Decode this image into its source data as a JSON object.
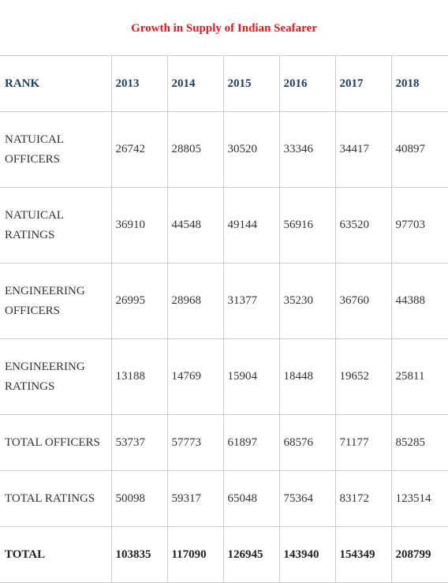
{
  "title": "Growth in Supply of Indian Seafarer",
  "table": {
    "header": [
      "RANK",
      "2013",
      "2014",
      "2015",
      "2016",
      "2017",
      "2018"
    ],
    "rows": [
      [
        "NATUICAL OFFICERS",
        26742,
        28805,
        30520,
        33346,
        34417,
        40897
      ],
      [
        "NATUICAL RATINGS",
        36910,
        44548,
        49144,
        56916,
        63520,
        97703
      ],
      [
        "ENGINEERING OFFICERS",
        26995,
        28968,
        31377,
        35230,
        36760,
        44388
      ],
      [
        "ENGINEERING RATINGS",
        13188,
        14769,
        15904,
        18448,
        19652,
        25811
      ],
      [
        "TOTAL OFFICERS",
        53737,
        57773,
        61897,
        68576,
        71177,
        85285
      ],
      [
        "TOTAL RATINGS",
        50098,
        59317,
        65048,
        75364,
        83172,
        123514
      ],
      [
        "TOTAL",
        103835,
        117090,
        126945,
        143940,
        154349,
        208799
      ]
    ]
  }
}
